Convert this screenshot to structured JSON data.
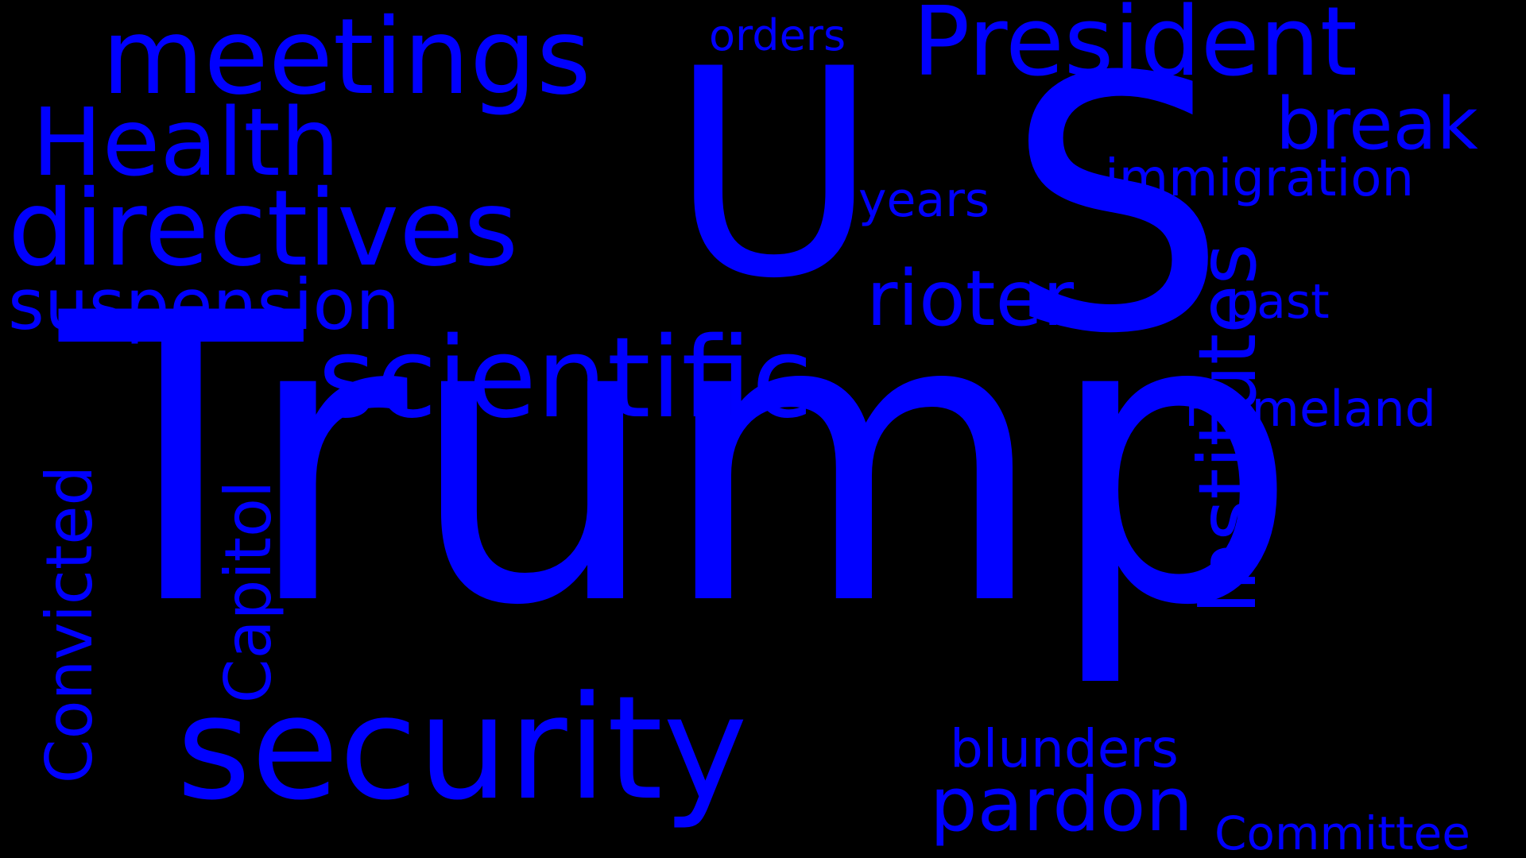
{
  "colors": {
    "background": "#000000",
    "word": "#0000ff"
  },
  "words": {
    "trump": "Trump",
    "s": "S",
    "u": "U",
    "security": "security",
    "scientific": "scientific",
    "directives": "directives",
    "meetings": "meetings",
    "president": "President",
    "health": "Health",
    "institutes": "Institutes",
    "suspension": "suspension",
    "rioter": "rioter",
    "pardon": "pardon",
    "convicted": "Convicted",
    "capitol": "Capitol",
    "break": "break",
    "immigration": "immigration",
    "homeland": "Homeland",
    "blunders": "blunders",
    "committee": "Committee",
    "years": "years",
    "past": "past",
    "orders": "orders"
  }
}
